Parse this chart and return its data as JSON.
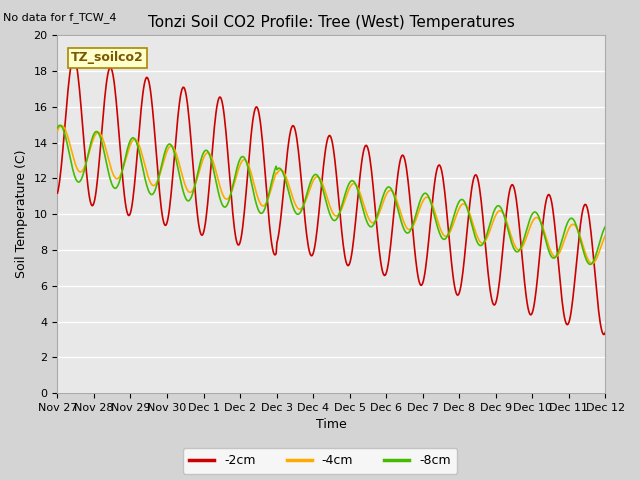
{
  "title": "Tonzi Soil CO2 Profile: Tree (West) Temperatures",
  "no_data_label": "No data for f_TCW_4",
  "box_label": "TZ_soilco2",
  "xlabel": "Time",
  "ylabel": "Soil Temperature (C)",
  "ylim": [
    0,
    20
  ],
  "yticks": [
    0,
    2,
    4,
    6,
    8,
    10,
    12,
    14,
    16,
    18,
    20
  ],
  "xtick_labels": [
    "Nov 27",
    "Nov 28",
    "Nov 29",
    "Nov 30",
    "Dec 1",
    "Dec 2",
    "Dec 3",
    "Dec 4",
    "Dec 5",
    "Dec 6",
    "Dec 7",
    "Dec 8",
    "Dec 9",
    "Dec 10",
    "Dec 11",
    "Dec 12"
  ],
  "legend": [
    {
      "label": "-2cm",
      "color": "#cc0000"
    },
    {
      "label": "-4cm",
      "color": "#ffaa00"
    },
    {
      "label": "-8cm",
      "color": "#44bb00"
    }
  ],
  "fig_facecolor": "#d4d4d4",
  "ax_facecolor": "#e8e8e8",
  "grid_color": "white",
  "line_width": 1.2,
  "title_fontsize": 11,
  "label_fontsize": 9,
  "tick_fontsize": 8
}
